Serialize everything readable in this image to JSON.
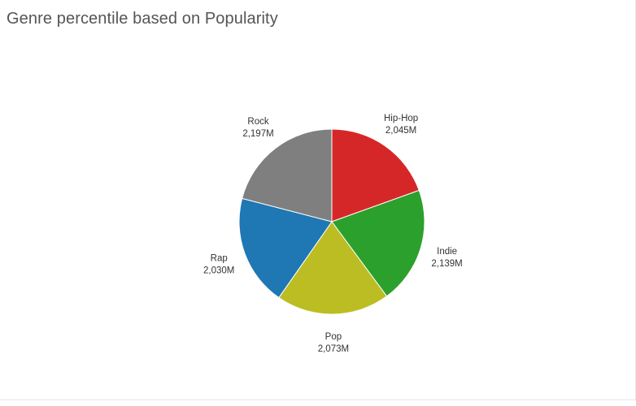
{
  "chart_data": {
    "type": "pie",
    "title": "Genre percentile based on Popularity",
    "slices": [
      {
        "name": "Hip-Hop",
        "value": 2045,
        "label": "2,045M",
        "color": "#d62728"
      },
      {
        "name": "Indie",
        "value": 2139,
        "label": "2,139M",
        "color": "#2ca02c"
      },
      {
        "name": "Pop",
        "value": 2073,
        "label": "2,073M",
        "color": "#bcbd22"
      },
      {
        "name": "Rap",
        "value": 2030,
        "label": "2,030M",
        "color": "#1f77b4"
      },
      {
        "name": "Rock",
        "value": 2197,
        "label": "2,197M",
        "color": "#7f7f7f"
      }
    ],
    "legend": "none"
  }
}
